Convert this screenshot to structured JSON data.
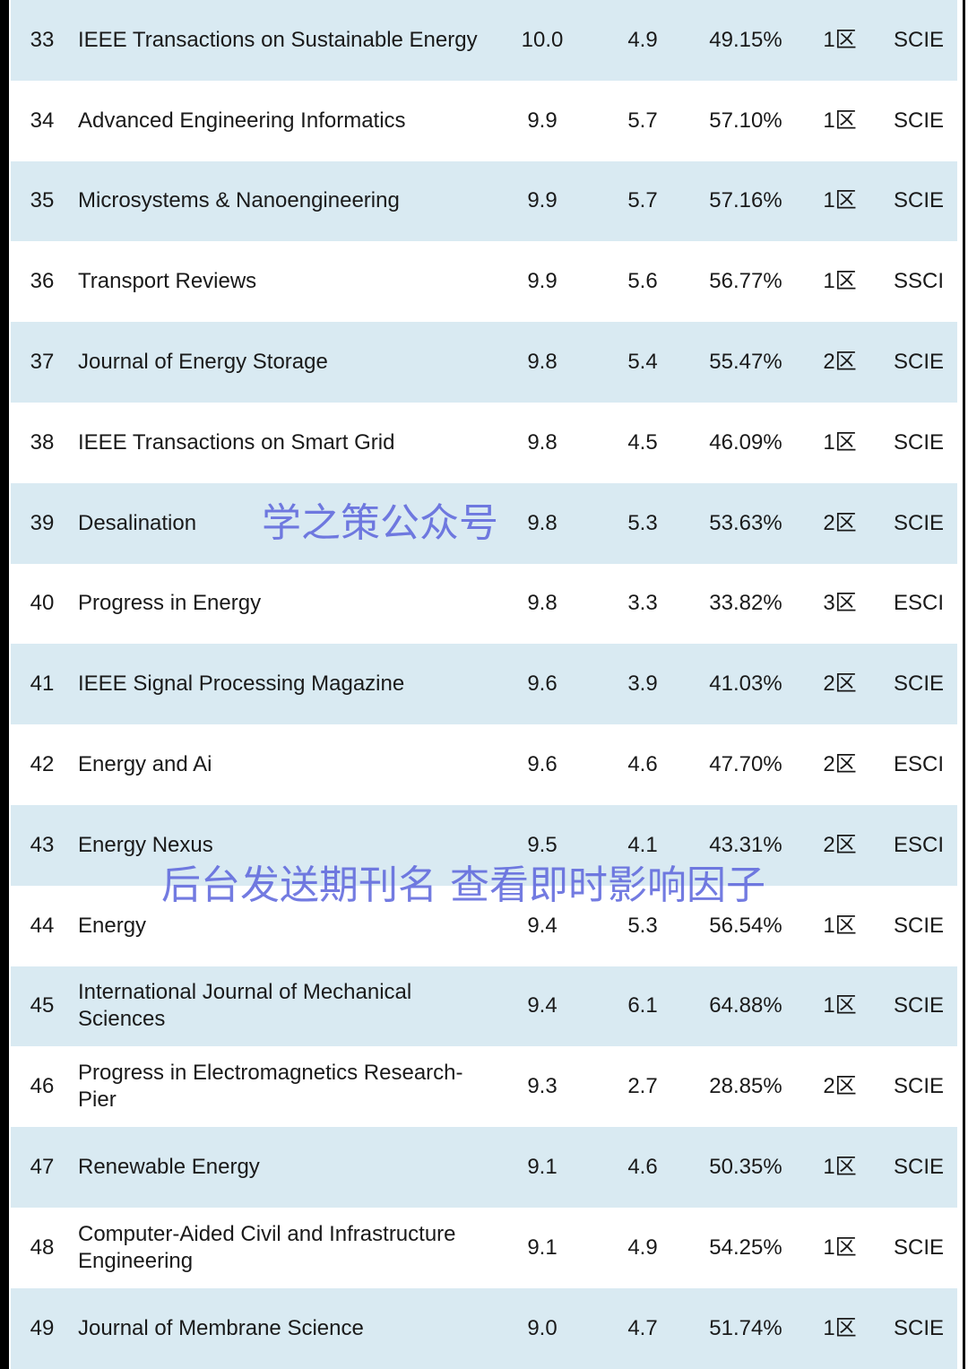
{
  "colors": {
    "row_alt": "#d9eaf2",
    "watermark": "#5a64dc"
  },
  "rows": [
    {
      "rank": "33",
      "name": "IEEE Transactions on Sustainable Energy",
      "if": "10.0",
      "if5": "4.9",
      "pct": "49.15%",
      "zone": "1区",
      "index": "SCIE"
    },
    {
      "rank": "34",
      "name": "Advanced Engineering Informatics",
      "if": "9.9",
      "if5": "5.7",
      "pct": "57.10%",
      "zone": "1区",
      "index": "SCIE"
    },
    {
      "rank": "35",
      "name": "Microsystems & Nanoengineering",
      "if": "9.9",
      "if5": "5.7",
      "pct": "57.16%",
      "zone": "1区",
      "index": "SCIE"
    },
    {
      "rank": "36",
      "name": "Transport Reviews",
      "if": "9.9",
      "if5": "5.6",
      "pct": "56.77%",
      "zone": "1区",
      "index": "SSCI"
    },
    {
      "rank": "37",
      "name": "Journal of Energy Storage",
      "if": "9.8",
      "if5": "5.4",
      "pct": "55.47%",
      "zone": "2区",
      "index": "SCIE"
    },
    {
      "rank": "38",
      "name": "IEEE Transactions on Smart Grid",
      "if": "9.8",
      "if5": "4.5",
      "pct": "46.09%",
      "zone": "1区",
      "index": "SCIE"
    },
    {
      "rank": "39",
      "name": "Desalination",
      "if": "9.8",
      "if5": "5.3",
      "pct": "53.63%",
      "zone": "2区",
      "index": "SCIE"
    },
    {
      "rank": "40",
      "name": "Progress in Energy",
      "if": "9.8",
      "if5": "3.3",
      "pct": "33.82%",
      "zone": "3区",
      "index": "ESCI"
    },
    {
      "rank": "41",
      "name": "IEEE Signal Processing Magazine",
      "if": "9.6",
      "if5": "3.9",
      "pct": "41.03%",
      "zone": "2区",
      "index": "SCIE"
    },
    {
      "rank": "42",
      "name": "Energy and Ai",
      "if": "9.6",
      "if5": "4.6",
      "pct": "47.70%",
      "zone": "2区",
      "index": "ESCI"
    },
    {
      "rank": "43",
      "name": "Energy Nexus",
      "if": "9.5",
      "if5": "4.1",
      "pct": "43.31%",
      "zone": "2区",
      "index": "ESCI"
    },
    {
      "rank": "44",
      "name": "Energy",
      "if": "9.4",
      "if5": "5.3",
      "pct": "56.54%",
      "zone": "1区",
      "index": "SCIE"
    },
    {
      "rank": "45",
      "name": "International Journal of Mechanical Sciences",
      "if": "9.4",
      "if5": "6.1",
      "pct": "64.88%",
      "zone": "1区",
      "index": "SCIE"
    },
    {
      "rank": "46",
      "name": "Progress in Electromagnetics Research-Pier",
      "if": "9.3",
      "if5": "2.7",
      "pct": "28.85%",
      "zone": "2区",
      "index": "SCIE"
    },
    {
      "rank": "47",
      "name": "Renewable Energy",
      "if": "9.1",
      "if5": "4.6",
      "pct": "50.35%",
      "zone": "1区",
      "index": "SCIE"
    },
    {
      "rank": "48",
      "name": "Computer-Aided Civil and Infrastructure Engineering",
      "if": "9.1",
      "if5": "4.9",
      "pct": "54.25%",
      "zone": "1区",
      "index": "SCIE"
    },
    {
      "rank": "49",
      "name": "Journal of Membrane Science",
      "if": "9.0",
      "if5": "4.7",
      "pct": "51.74%",
      "zone": "1区",
      "index": "SCIE"
    }
  ],
  "watermarks": {
    "top": "学之策公众号",
    "bottom": "后台发送期刊名 查看即时影响因子"
  }
}
